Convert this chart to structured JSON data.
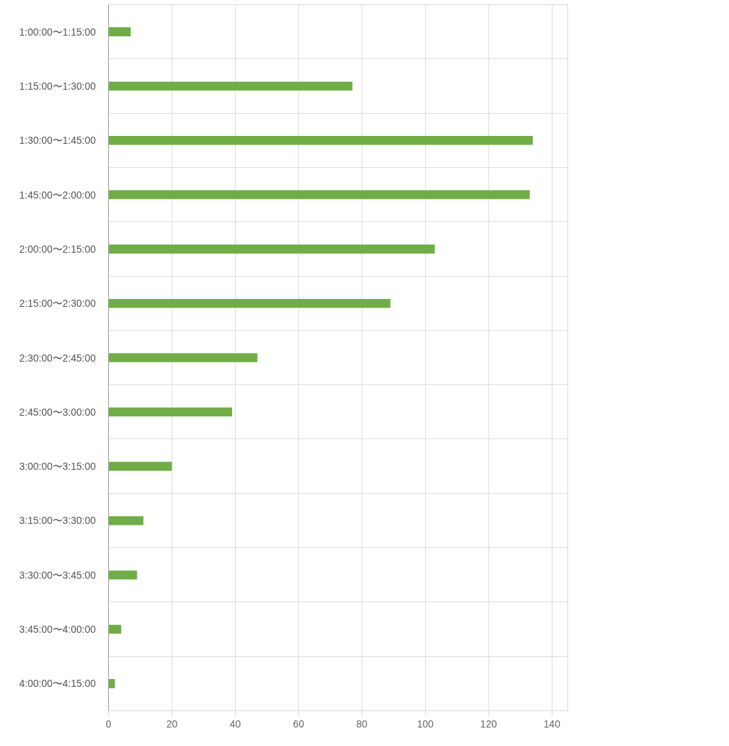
{
  "chart_data": {
    "type": "bar",
    "orientation": "horizontal",
    "categories": [
      "1:00:00〜1:15:00",
      "1:15:00〜1:30:00",
      "1:30:00〜1:45:00",
      "1:45:00〜2:00:00",
      "2:00:00〜2:15:00",
      "2:15:00〜2:30:00",
      "2:30:00〜2:45:00",
      "2:45:00〜3:00:00",
      "3:00:00〜3:15:00",
      "3:15:00〜3:30:00",
      "3:30:00〜3:45:00",
      "3:45:00〜4:00:00",
      "4:00:00〜4:15:00"
    ],
    "values": [
      7,
      77,
      134,
      133,
      103,
      89,
      47,
      39,
      20,
      11,
      9,
      4,
      2
    ],
    "color": "#70ad47",
    "xlim": [
      0,
      145
    ],
    "xticks": [
      0,
      20,
      40,
      60,
      80,
      100,
      120,
      140
    ],
    "grid": true
  }
}
